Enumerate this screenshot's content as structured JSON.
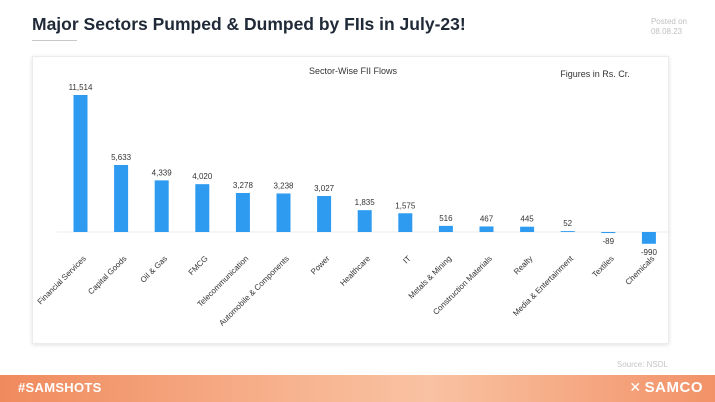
{
  "header": {
    "title": "Major Sectors Pumped & Dumped by FIIs in July-23!",
    "posted_label": "Posted on",
    "posted_date": "08.08.23"
  },
  "footer": {
    "hashtag": "#SAMSHOTS",
    "brand": "SAMCO",
    "source": "Source: NSDL"
  },
  "colors": {
    "positive_bar": "#2e9bf0",
    "negative_bar": "#2e9bf0",
    "footer_accent": "#f08a5d"
  },
  "chart_data": {
    "type": "bar",
    "title": "Sector-Wise FII Flows",
    "units_note": "Figures in Rs. Cr.",
    "xlabel": "",
    "ylabel": "",
    "grid": false,
    "categories": [
      "Financial Services",
      "Capital Goods",
      "Oil & Gas",
      "FMCG",
      "Telecommunication",
      "Automobile & Components",
      "Power",
      "Healthcare",
      "IT",
      "Metals & Mining",
      "Construction Materials",
      "Realty",
      "Media & Entertainment",
      "Textiles",
      "Chemicals"
    ],
    "values": [
      11514,
      5633,
      4339,
      4020,
      3278,
      3238,
      3027,
      1835,
      1575,
      516,
      467,
      445,
      52,
      -89,
      -990
    ],
    "value_labels": [
      "11,514",
      "5,633",
      "4,339",
      "4,020",
      "3,278",
      "3,238",
      "3,027",
      "1,835",
      "1,575",
      "516",
      "467",
      "445",
      "52",
      "-89",
      "-990"
    ],
    "ylim": [
      -1200,
      12000
    ]
  }
}
